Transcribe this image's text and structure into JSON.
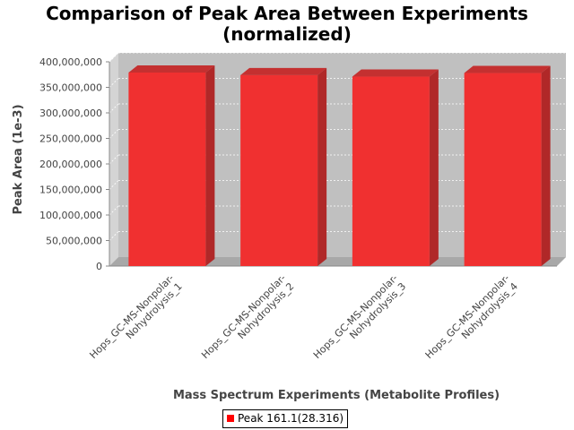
{
  "chart_data": {
    "type": "bar",
    "title_line1": "Comparison of Peak Area Between Experiments",
    "title_line2": "(normalized)",
    "xlabel": "Mass Spectrum Experiments (Metabolite Profiles)",
    "ylabel": "Peak Area (1e-3)",
    "categories": [
      [
        "Hops_GC-MS-Nonpolar-",
        "Nohydrolysis_1"
      ],
      [
        "Hops_GC-MS-Nonpolar-",
        "Nohydrolysis_2"
      ],
      [
        "Hops_GC-MS-Nonpolar-",
        "Nohydrolysis_3"
      ],
      [
        "Hops_GC-MS-Nonpolar-",
        "Nohydrolysis_4"
      ]
    ],
    "series": [
      {
        "name": "Peak 161.1(28.316)",
        "color": "#ff0000",
        "values": [
          379000000,
          374000000,
          371000000,
          378000000
        ]
      }
    ],
    "ylim": [
      0,
      400000000
    ],
    "yticks": [
      "0",
      "50,000,000",
      "100,000,000",
      "150,000,000",
      "200,000,000",
      "250,000,000",
      "300,000,000",
      "350,000,000",
      "400,000,000"
    ],
    "grid": true,
    "legend_position": "bottom",
    "plot_background": "#c0c0c0"
  }
}
